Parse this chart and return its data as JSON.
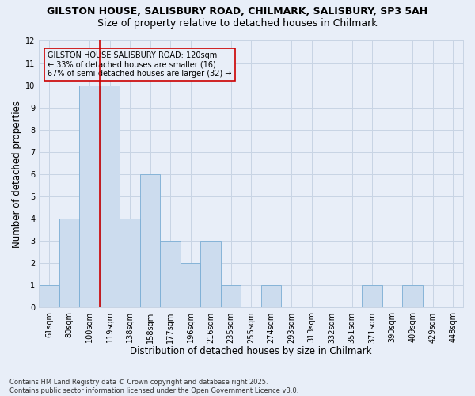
{
  "title1": "GILSTON HOUSE, SALISBURY ROAD, CHILMARK, SALISBURY, SP3 5AH",
  "title2": "Size of property relative to detached houses in Chilmark",
  "xlabel": "Distribution of detached houses by size in Chilmark",
  "ylabel": "Number of detached properties",
  "categories": [
    "61sqm",
    "80sqm",
    "100sqm",
    "119sqm",
    "138sqm",
    "158sqm",
    "177sqm",
    "196sqm",
    "216sqm",
    "235sqm",
    "255sqm",
    "274sqm",
    "293sqm",
    "313sqm",
    "332sqm",
    "351sqm",
    "371sqm",
    "390sqm",
    "409sqm",
    "429sqm",
    "448sqm"
  ],
  "values": [
    1,
    4,
    10,
    10,
    4,
    6,
    3,
    2,
    3,
    1,
    0,
    1,
    0,
    0,
    0,
    0,
    1,
    0,
    1,
    0,
    0
  ],
  "bar_color": "#ccdcee",
  "bar_edge_color": "#7aadd4",
  "vline_x": 2.5,
  "vline_color": "#cc0000",
  "annotation_text": "GILSTON HOUSE SALISBURY ROAD: 120sqm\n← 33% of detached houses are smaller (16)\n67% of semi-detached houses are larger (32) →",
  "annotation_box_color": "#cc0000",
  "ylim": [
    0,
    12
  ],
  "yticks": [
    0,
    1,
    2,
    3,
    4,
    5,
    6,
    7,
    8,
    9,
    10,
    11,
    12
  ],
  "grid_color": "#c8d4e4",
  "background_color": "#e8eef8",
  "footer": "Contains HM Land Registry data © Crown copyright and database right 2025.\nContains public sector information licensed under the Open Government Licence v3.0.",
  "title1_fontsize": 9,
  "title2_fontsize": 9,
  "xlabel_fontsize": 8.5,
  "ylabel_fontsize": 8.5,
  "tick_fontsize": 7,
  "annotation_fontsize": 7,
  "footer_fontsize": 6
}
